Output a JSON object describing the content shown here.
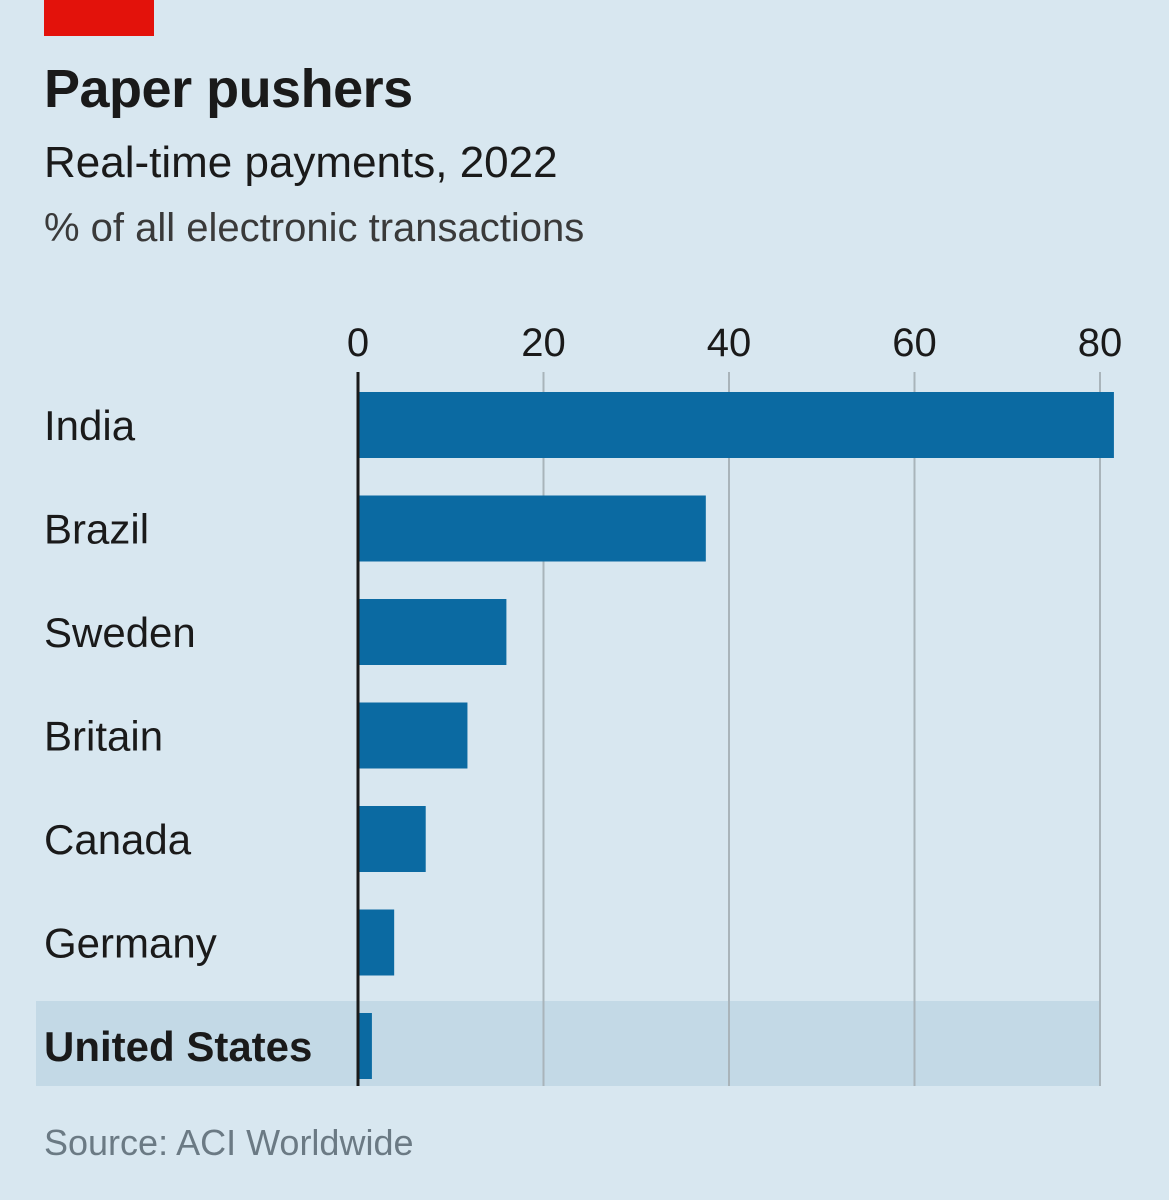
{
  "header": {
    "title": "Paper pushers",
    "subtitle": "Real-time payments, 2022",
    "unit": "% of all electronic transactions"
  },
  "footer": {
    "source": "Source: ACI Worldwide"
  },
  "colors": {
    "background": "#d8e7f0",
    "bar": "#0b6aa2",
    "highlight_band": "#c3d9e6",
    "accent_tag": "#e3120b",
    "gridline": "#a9b4ba"
  },
  "chart_data": {
    "type": "bar",
    "orientation": "horizontal",
    "categories": [
      "India",
      "Brazil",
      "Sweden",
      "Britain",
      "Canada",
      "Germany",
      "United States"
    ],
    "values": [
      81.5,
      37.5,
      16,
      11.8,
      7.3,
      3.9,
      1.5
    ],
    "highlight": "United States",
    "xlim": [
      0,
      80
    ],
    "xticks": [
      "0",
      "20",
      "40",
      "60",
      "80"
    ],
    "x_axis_position": "top",
    "grid": true,
    "legend": "none"
  }
}
